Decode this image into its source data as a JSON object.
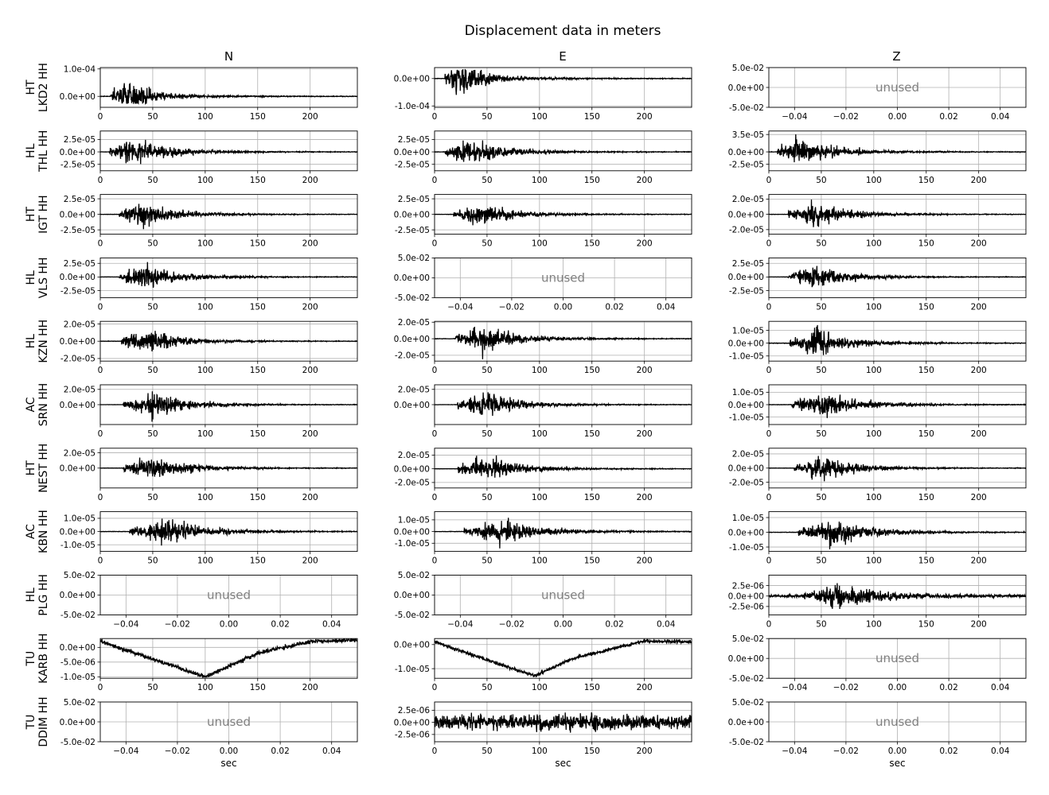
{
  "title": "Displacement data in meters",
  "columns": [
    "N",
    "E",
    "Z"
  ],
  "xlabel": "sec",
  "unused_label": "unused",
  "trace_x_ticks": [
    "0",
    "50",
    "100",
    "150",
    "200"
  ],
  "unused_x_ticks": [
    "−0.04",
    "−0.02",
    "0.00",
    "0.02",
    "0.04"
  ],
  "unused_y_ticks": [
    "5.0e-02",
    "0.0e+00",
    "-5.0e-02"
  ],
  "colors": {
    "trace": "#000000",
    "grid": "#b0b0b0",
    "unused_text": "#808080"
  },
  "chart_data": {
    "type": "line",
    "title": "Displacement data in meters",
    "xlabel": "sec",
    "xlim": [
      0,
      245
    ],
    "grid": true,
    "rows": [
      {
        "label": [
          "HT",
          "LKD2 HH"
        ],
        "panels": [
          {
            "status": "data",
            "ylim": [
              -4e-05,
              0.000105
            ],
            "yticks": [
              0.0001,
              0
            ],
            "ytick_labels": [
              "1.0e-04",
              "0.0e+00"
            ],
            "onset": 10,
            "peak": 25,
            "amp_pos": 9.5e-05,
            "amp_neg": 2.8e-05,
            "decay": 22,
            "duration": 245,
            "noise": 1e-06
          },
          {
            "status": "data",
            "ylim": [
              -0.000105,
              4e-05
            ],
            "yticks": [
              0,
              -0.0001
            ],
            "ytick_labels": [
              "0.0e+00",
              "-1.0e-04"
            ],
            "onset": 10,
            "peak": 25,
            "amp_pos": 3.5e-05,
            "amp_neg": 0.0001,
            "decay": 22,
            "duration": 245,
            "noise": 1e-06
          },
          {
            "status": "unused"
          }
        ]
      },
      {
        "label": [
          "HL",
          "THL HH"
        ],
        "panels": [
          {
            "status": "data",
            "ylim": [
              -3.8e-05,
              4.2e-05
            ],
            "yticks": [
              2.5e-05,
              0,
              -2.5e-05
            ],
            "ytick_labels": [
              "2.5e-05",
              "0.0e+00",
              "-2.5e-05"
            ],
            "onset": 8,
            "peak": 28,
            "amp_pos": 4e-05,
            "amp_neg": 3.5e-05,
            "decay": 35,
            "duration": 245,
            "noise": 5e-07
          },
          {
            "status": "data",
            "ylim": [
              -3.8e-05,
              4.2e-05
            ],
            "yticks": [
              2.5e-05,
              0,
              -2.5e-05
            ],
            "ytick_labels": [
              "2.5e-05",
              "0.0e+00",
              "-2.5e-05"
            ],
            "onset": 10,
            "peak": 28,
            "amp_pos": 4e-05,
            "amp_neg": 3.5e-05,
            "decay": 35,
            "duration": 245,
            "noise": 5e-07
          },
          {
            "status": "data",
            "ylim": [
              -3.8e-05,
              4.2e-05
            ],
            "yticks": [
              3.5e-05,
              0,
              -2.5e-05
            ],
            "ytick_labels": [
              "3.5e-05",
              "0.0e+00",
              "-2.5e-05"
            ],
            "onset": 8,
            "peak": 25,
            "amp_pos": 4e-05,
            "amp_neg": 3.5e-05,
            "decay": 35,
            "duration": 245,
            "noise": 5e-07
          }
        ]
      },
      {
        "label": [
          "HT",
          "IGT HH"
        ],
        "panels": [
          {
            "status": "data",
            "ylim": [
              -3.2e-05,
              3.2e-05
            ],
            "yticks": [
              2.5e-05,
              0,
              -2.5e-05
            ],
            "ytick_labels": [
              "2.5e-05",
              "0.0e+00",
              "-2.5e-05"
            ],
            "onset": 18,
            "peak": 38,
            "amp_pos": 3e-05,
            "amp_neg": 3e-05,
            "decay": 30,
            "duration": 245,
            "noise": 3e-07
          },
          {
            "status": "data",
            "ylim": [
              -3.2e-05,
              3.2e-05
            ],
            "yticks": [
              2.5e-05,
              0,
              -2.5e-05
            ],
            "ytick_labels": [
              "2.5e-05",
              "0.0e+00",
              "-2.5e-05"
            ],
            "onset": 18,
            "peak": 38,
            "amp_pos": 3e-05,
            "amp_neg": 3e-05,
            "decay": 30,
            "duration": 245,
            "noise": 3e-07
          },
          {
            "status": "data",
            "ylim": [
              -2.6e-05,
              2.6e-05
            ],
            "yticks": [
              2e-05,
              0,
              -2e-05
            ],
            "ytick_labels": [
              "2.0e-05",
              "0.0e+00",
              "-2.0e-05"
            ],
            "onset": 18,
            "peak": 40,
            "amp_pos": 2.5e-05,
            "amp_neg": 2.2e-05,
            "decay": 32,
            "duration": 245,
            "noise": 3e-07
          }
        ]
      },
      {
        "label": [
          "HL",
          "VLS HH"
        ],
        "panels": [
          {
            "status": "data",
            "ylim": [
              -3.8e-05,
              3.5e-05
            ],
            "yticks": [
              2.5e-05,
              0,
              -2.5e-05
            ],
            "ytick_labels": [
              "2.5e-05",
              "0.0e+00",
              "-2.5e-05"
            ],
            "onset": 18,
            "peak": 42,
            "amp_pos": 3.4e-05,
            "amp_neg": 3.6e-05,
            "decay": 30,
            "duration": 245,
            "noise": 3e-07
          },
          {
            "status": "unused"
          },
          {
            "status": "data",
            "ylim": [
              -3.8e-05,
              3.5e-05
            ],
            "yticks": [
              2.5e-05,
              0,
              -2.5e-05
            ],
            "ytick_labels": [
              "2.5e-05",
              "0.0e+00",
              "-2.5e-05"
            ],
            "onset": 18,
            "peak": 42,
            "amp_pos": 3.4e-05,
            "amp_neg": 3.6e-05,
            "decay": 30,
            "duration": 245,
            "noise": 3e-07
          }
        ]
      },
      {
        "label": [
          "HL",
          "KZN HH"
        ],
        "panels": [
          {
            "status": "data",
            "ylim": [
              -2.3e-05,
              2.3e-05
            ],
            "yticks": [
              2e-05,
              0,
              -2e-05
            ],
            "ytick_labels": [
              "2.0e-05",
              "0.0e+00",
              "-2.0e-05"
            ],
            "onset": 20,
            "peak": 45,
            "amp_pos": 2.2e-05,
            "amp_neg": 2.2e-05,
            "decay": 30,
            "duration": 245,
            "noise": 3e-07
          },
          {
            "status": "data",
            "ylim": [
              -2.7e-05,
              2.1e-05
            ],
            "yticks": [
              2e-05,
              0,
              -2e-05
            ],
            "ytick_labels": [
              "2.0e-05",
              "0.0e+00",
              "-2.0e-05"
            ],
            "onset": 20,
            "peak": 45,
            "amp_pos": 2e-05,
            "amp_neg": 2.6e-05,
            "decay": 30,
            "duration": 245,
            "noise": 3e-07
          },
          {
            "status": "data",
            "ylim": [
              -1.4e-05,
              1.7e-05
            ],
            "yticks": [
              1e-05,
              0,
              -1e-05
            ],
            "ytick_labels": [
              "1.0e-05",
              "0.0e+00",
              "-1.0e-05"
            ],
            "onset": 20,
            "peak": 45,
            "amp_pos": 1.6e-05,
            "amp_neg": 1.4e-05,
            "decay": 30,
            "duration": 245,
            "noise": 3e-07
          }
        ]
      },
      {
        "label": [
          "AC",
          "SRN HH"
        ],
        "panels": [
          {
            "status": "data",
            "ylim": [
              -2.6e-05,
              2.6e-05
            ],
            "yticks": [
              2e-05,
              0
            ],
            "ytick_labels": [
              "2.0e-05",
              "0.0e+00"
            ],
            "onset": 22,
            "peak": 50,
            "amp_pos": 2.5e-05,
            "amp_neg": 2.5e-05,
            "decay": 30,
            "duration": 245,
            "noise": 2e-07
          },
          {
            "status": "data",
            "ylim": [
              -2.6e-05,
              2.6e-05
            ],
            "yticks": [
              2e-05,
              0
            ],
            "ytick_labels": [
              "2.0e-05",
              "0.0e+00"
            ],
            "onset": 22,
            "peak": 48,
            "amp_pos": 2.5e-05,
            "amp_neg": 2.2e-05,
            "decay": 30,
            "duration": 245,
            "noise": 2e-07
          },
          {
            "status": "data",
            "ylim": [
              -1.6e-05,
              1.6e-05
            ],
            "yticks": [
              1e-05,
              0,
              -1e-05
            ],
            "ytick_labels": [
              "1.0e-05",
              "0.0e+00",
              "-1.0e-05"
            ],
            "onset": 22,
            "peak": 52,
            "amp_pos": 1.5e-05,
            "amp_neg": 1.5e-05,
            "decay": 35,
            "duration": 245,
            "noise": 2e-07
          }
        ]
      },
      {
        "label": [
          "HT",
          "NEST HH"
        ],
        "panels": [
          {
            "status": "data",
            "ylim": [
              -2.6e-05,
              2.6e-05
            ],
            "yticks": [
              2e-05,
              0
            ],
            "ytick_labels": [
              "2.0e-05",
              "0.0e+00"
            ],
            "onset": 22,
            "peak": 50,
            "amp_pos": 2.5e-05,
            "amp_neg": 2.2e-05,
            "decay": 30,
            "duration": 245,
            "noise": 2e-07
          },
          {
            "status": "data",
            "ylim": [
              -2.8e-05,
              3e-05
            ],
            "yticks": [
              2e-05,
              0,
              -2e-05
            ],
            "ytick_labels": [
              "2.0e-05",
              "0.0e+00",
              "-2.0e-05"
            ],
            "onset": 22,
            "peak": 50,
            "amp_pos": 2.8e-05,
            "amp_neg": 2.6e-05,
            "decay": 30,
            "duration": 245,
            "noise": 2e-07
          },
          {
            "status": "data",
            "ylim": [
              -2.8e-05,
              2.8e-05
            ],
            "yticks": [
              2e-05,
              0,
              -2e-05
            ],
            "ytick_labels": [
              "2.0e-05",
              "0.0e+00",
              "-2.0e-05"
            ],
            "onset": 24,
            "peak": 52,
            "amp_pos": 2.6e-05,
            "amp_neg": 2.6e-05,
            "decay": 30,
            "duration": 245,
            "noise": 2e-07
          }
        ]
      },
      {
        "label": [
          "AC",
          "KBN HH"
        ],
        "panels": [
          {
            "status": "data",
            "ylim": [
              -1.5e-05,
              1.5e-05
            ],
            "yticks": [
              1e-05,
              0,
              -1e-05
            ],
            "ytick_labels": [
              "1.0e-05",
              "0.0e+00",
              "-1.0e-05"
            ],
            "onset": 28,
            "peak": 62,
            "amp_pos": 1.4e-05,
            "amp_neg": 1.4e-05,
            "decay": 35,
            "duration": 245,
            "noise": 2e-07
          },
          {
            "status": "data",
            "ylim": [
              -1.7e-05,
              1.7e-05
            ],
            "yticks": [
              1e-05,
              0,
              -1e-05
            ],
            "ytick_labels": [
              "1.0e-05",
              "0.0e+00",
              "-1.0e-05"
            ],
            "onset": 28,
            "peak": 62,
            "amp_pos": 1.6e-05,
            "amp_neg": 1.6e-05,
            "decay": 35,
            "duration": 245,
            "noise": 2e-07
          },
          {
            "status": "data",
            "ylim": [
              -1.3e-05,
              1.4e-05
            ],
            "yticks": [
              1e-05,
              0,
              -1e-05
            ],
            "ytick_labels": [
              "1.0e-05",
              "0.0e+00",
              "-1.0e-05"
            ],
            "onset": 28,
            "peak": 62,
            "amp_pos": 1.3e-05,
            "amp_neg": 1.3e-05,
            "decay": 35,
            "duration": 245,
            "noise": 2e-07
          }
        ]
      },
      {
        "label": [
          "HL",
          "PLG HH"
        ],
        "panels": [
          {
            "status": "unused"
          },
          {
            "status": "unused"
          },
          {
            "status": "data",
            "ylim": [
              -4.5e-06,
              5e-06
            ],
            "yticks": [
              2.5e-06,
              0,
              -2.5e-06
            ],
            "ytick_labels": [
              "2.5e-06",
              "0.0e+00",
              "-2.5e-06"
            ],
            "onset": 32,
            "peak": 65,
            "amp_pos": 4.5e-06,
            "amp_neg": 4.3e-06,
            "decay": 45,
            "duration": 245,
            "noise": 4e-07
          }
        ]
      },
      {
        "label": [
          "TU",
          "KARB HH"
        ],
        "panels": [
          {
            "status": "drift",
            "ylim": [
              -1.05e-05,
              3e-06
            ],
            "yticks": [
              0,
              -5e-06,
              -1e-05
            ],
            "ytick_labels": [
              "0.0e+00",
              "-5.0e-06",
              "-1.0e-05"
            ],
            "drift": [
              [
                0,
                2e-06
              ],
              [
                100,
                -1e-05
              ],
              [
                150,
                -2e-06
              ],
              [
                200,
                2e-06
              ],
              [
                245,
                2.5e-06
              ]
            ],
            "noise": 8e-07,
            "duration": 245
          },
          {
            "status": "drift",
            "ylim": [
              -1.4e-05,
              2.5e-06
            ],
            "yticks": [
              0,
              -1e-05
            ],
            "ytick_labels": [
              "0.0e+00",
              "-1.0e-05"
            ],
            "drift": [
              [
                0,
                1e-06
              ],
              [
                95,
                -1.3e-05
              ],
              [
                130,
                -6e-06
              ],
              [
                200,
                1.5e-06
              ],
              [
                245,
                1e-06
              ]
            ],
            "noise": 8e-07,
            "duration": 245
          },
          {
            "status": "unused"
          }
        ]
      },
      {
        "label": [
          "TU",
          "DDIM HH"
        ],
        "panels": [
          {
            "status": "unused"
          },
          {
            "status": "noise",
            "ylim": [
              -4e-06,
              4.2e-06
            ],
            "yticks": [
              2.5e-06,
              0,
              -2.5e-06
            ],
            "ytick_labels": [
              "2.5e-06",
              "0.0e+00",
              "-2.5e-06"
            ],
            "noise": 1.6e-06,
            "duration": 245
          },
          {
            "status": "unused"
          }
        ]
      }
    ]
  }
}
